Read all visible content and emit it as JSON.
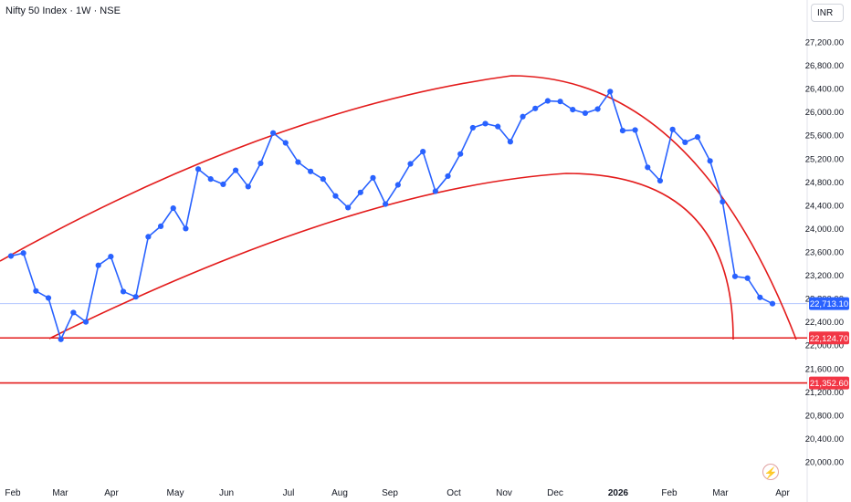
{
  "header": {
    "title": "Nifty 50 Index · 1W · NSE",
    "currency": "INR"
  },
  "colors": {
    "series": "#2962ff",
    "trendlines": "#e31b1b",
    "axis_text": "#131722",
    "last_label_bg": "#2962ff",
    "level_label_bg": "#f23645"
  },
  "chart_data": {
    "type": "line",
    "x_labels": [
      "Feb",
      "Mar",
      "Apr",
      "May",
      "Jun",
      "Jul",
      "Aug",
      "Sep",
      "Oct",
      "Nov",
      "Dec",
      "2026",
      "Feb",
      "Mar",
      "Apr"
    ],
    "y_ticks": [
      "27,200.00",
      "26,800.00",
      "26,400.00",
      "26,000.00",
      "25,600.00",
      "25,200.00",
      "24,800.00",
      "24,400.00",
      "24,000.00",
      "23,600.00",
      "23,200.00",
      "22,800.00",
      "22,400.00",
      "22,000.00",
      "21,600.00",
      "21,200.00",
      "20,800.00",
      "20,400.00",
      "20,000.00"
    ],
    "ylim": [
      19800,
      27600
    ],
    "series": [
      {
        "values": [
          23530,
          23580,
          22930,
          22810,
          22100,
          22560,
          22400,
          23370,
          23520,
          22920,
          22830,
          23860,
          24040,
          24350,
          24000,
          25020,
          24850,
          24760,
          25000,
          24720,
          25120,
          25640,
          25470,
          25140,
          24980,
          24850,
          24560,
          24360,
          24620,
          24870,
          24420,
          24750,
          25110,
          25320,
          24640,
          24900,
          25280,
          25730,
          25800,
          25750,
          25490,
          25920,
          26060,
          26190,
          26180,
          26040,
          25980,
          26050,
          26350,
          25680,
          25690,
          25050,
          24820,
          25700,
          25480,
          25570,
          25160,
          24460,
          23180,
          23150,
          22820,
          22713.1
        ]
      }
    ],
    "last_value_label": "22,713.10",
    "horizontal_levels": [
      {
        "label": "22,124.70",
        "value": 22124.7
      },
      {
        "label": "21,352.60",
        "value": 21352.6
      }
    ]
  },
  "footer": {
    "flash_icon": "lightning-icon"
  }
}
